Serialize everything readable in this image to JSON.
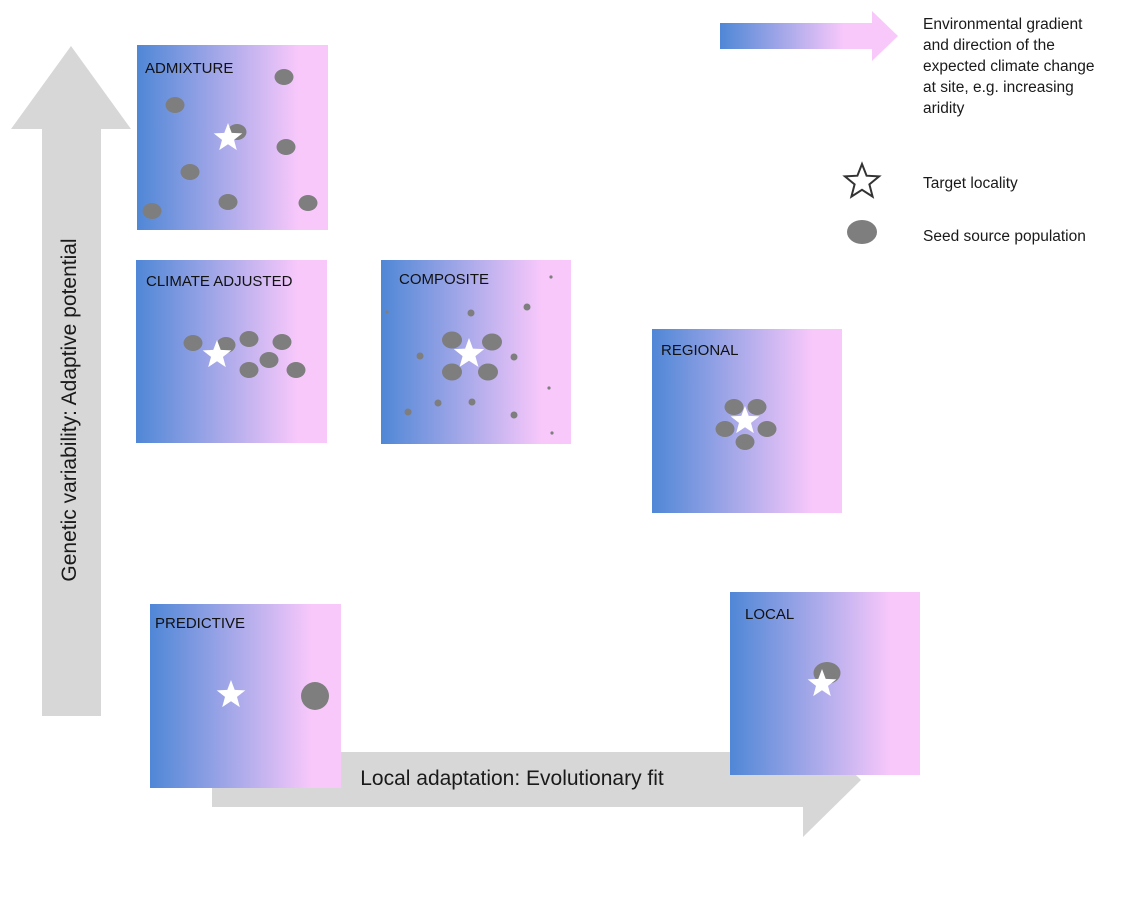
{
  "colors": {
    "gradient_start": "#4f87d6",
    "gradient_end": "#f9c8fb",
    "seed_population": "#7e7e7e",
    "target_star": "#ffffff",
    "axis_arrow": "#d7d7d7"
  },
  "legend": {
    "gradient_label": "Environmental gradient and direction of the expected climate change at site, e.g. increasing aridity",
    "gradient_lines": [
      "Environmental gradient",
      "and direction of the",
      "expected climate change",
      "at site, e.g. increasing",
      "aridity"
    ],
    "target_label": "Target locality",
    "seed_label": "Seed source population",
    "target_icon": "star-outline-icon",
    "seed_icon": "filled-ellipse-icon"
  },
  "axes": {
    "y_label": "Genetic variability: Adaptive potential",
    "x_label": "Local adaptation: Evolutionary fit"
  },
  "panels": {
    "admixture": "ADMIXTURE",
    "climate_adjusted": "CLIMATE ADJUSTED",
    "composite": "COMPOSITE",
    "regional": "REGIONAL",
    "predictive": "PREDICTIVE",
    "local": "LOCAL"
  }
}
